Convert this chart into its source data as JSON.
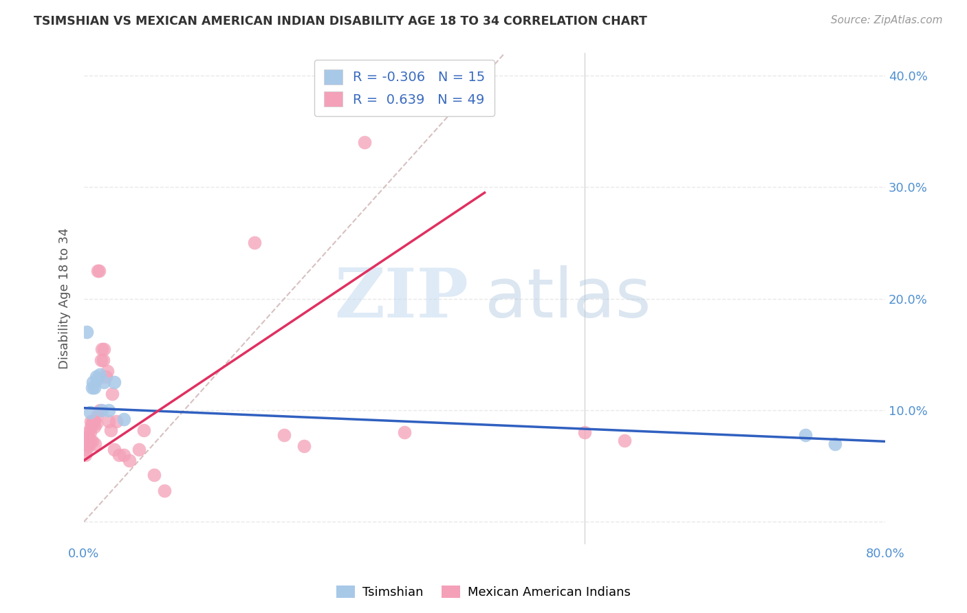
{
  "title": "TSIMSHIAN VS MEXICAN AMERICAN INDIAN DISABILITY AGE 18 TO 34 CORRELATION CHART",
  "source": "Source: ZipAtlas.com",
  "ylabel": "Disability Age 18 to 34",
  "watermark_zip": "ZIP",
  "watermark_atlas": "atlas",
  "xmin": 0.0,
  "xmax": 0.8,
  "ymin": -0.02,
  "ymax": 0.42,
  "xticks": [
    0.0,
    0.1,
    0.2,
    0.3,
    0.4,
    0.5,
    0.6,
    0.7,
    0.8
  ],
  "xticklabels": [
    "0.0%",
    "",
    "",
    "",
    "",
    "",
    "",
    "",
    "80.0%"
  ],
  "yticks": [
    0.0,
    0.1,
    0.2,
    0.3,
    0.4
  ],
  "yticklabels": [
    "",
    "10.0%",
    "20.0%",
    "30.0%",
    "40.0%"
  ],
  "tsimshian_color": "#a8c8e8",
  "mexican_color": "#f4a0b8",
  "tsimshian_line_color": "#3060c0",
  "mexican_line_color": "#e03060",
  "diag_line_color": "#d8c0c0",
  "legend_R1": "-0.306",
  "legend_N1": "15",
  "legend_R2": "0.639",
  "legend_N2": "49",
  "ts_line_x0": 0.0,
  "ts_line_y0": 0.102,
  "ts_line_x1": 0.8,
  "ts_line_y1": 0.072,
  "mx_line_x0": 0.0,
  "mx_line_y0": 0.055,
  "mx_line_x1": 0.4,
  "mx_line_y1": 0.295,
  "tsimshian_x": [
    0.003,
    0.006,
    0.008,
    0.009,
    0.01,
    0.012,
    0.014,
    0.016,
    0.018,
    0.02,
    0.025,
    0.03,
    0.04,
    0.72,
    0.75
  ],
  "tsimshian_y": [
    0.17,
    0.098,
    0.12,
    0.125,
    0.12,
    0.13,
    0.128,
    0.132,
    0.1,
    0.125,
    0.1,
    0.125,
    0.092,
    0.078,
    0.07
  ],
  "mexican_x": [
    0.001,
    0.002,
    0.002,
    0.003,
    0.003,
    0.004,
    0.004,
    0.005,
    0.005,
    0.006,
    0.006,
    0.007,
    0.007,
    0.008,
    0.008,
    0.009,
    0.01,
    0.01,
    0.011,
    0.012,
    0.013,
    0.014,
    0.015,
    0.016,
    0.017,
    0.018,
    0.019,
    0.02,
    0.022,
    0.023,
    0.025,
    0.027,
    0.028,
    0.03,
    0.032,
    0.035,
    0.04,
    0.045,
    0.055,
    0.06,
    0.07,
    0.08,
    0.17,
    0.2,
    0.22,
    0.28,
    0.32,
    0.5,
    0.54
  ],
  "mexican_y": [
    0.06,
    0.065,
    0.07,
    0.075,
    0.07,
    0.07,
    0.08,
    0.068,
    0.075,
    0.072,
    0.08,
    0.085,
    0.09,
    0.072,
    0.088,
    0.09,
    0.085,
    0.09,
    0.07,
    0.088,
    0.095,
    0.225,
    0.225,
    0.1,
    0.145,
    0.155,
    0.145,
    0.155,
    0.13,
    0.135,
    0.09,
    0.082,
    0.115,
    0.065,
    0.09,
    0.06,
    0.06,
    0.055,
    0.065,
    0.082,
    0.042,
    0.028,
    0.25,
    0.078,
    0.068,
    0.34,
    0.08,
    0.08,
    0.073
  ],
  "background_color": "#ffffff",
  "grid_color": "#e8e8e8",
  "tick_color": "#5090d0",
  "title_color": "#333333",
  "source_color": "#999999",
  "legend_text_color": "#3a6bbf",
  "ylabel_color": "#555555"
}
